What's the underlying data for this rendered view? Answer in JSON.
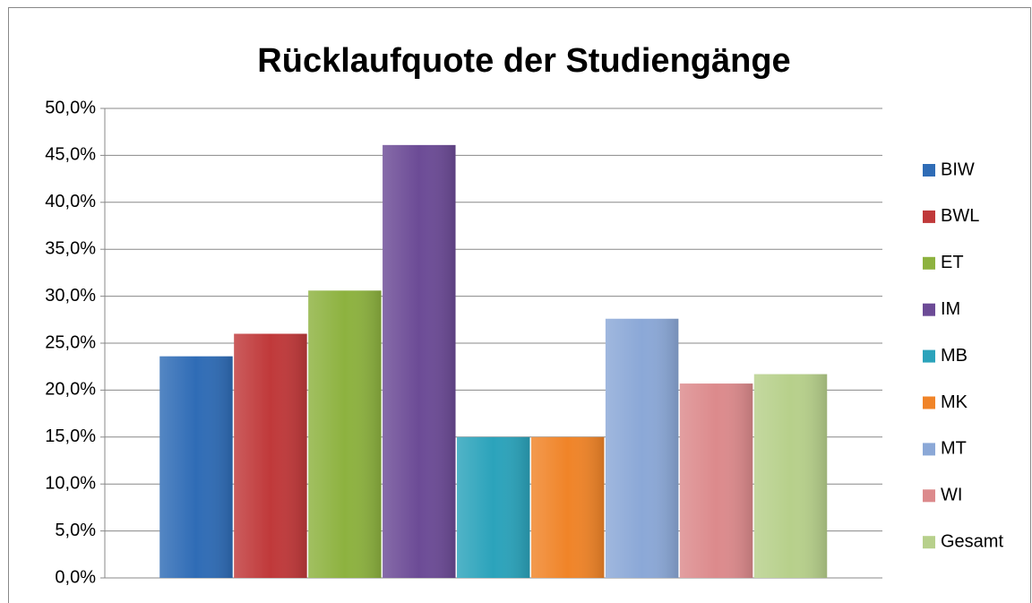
{
  "chart_data": {
    "type": "bar",
    "title": "Rücklaufquote der Studiengänge",
    "categories": [
      null
    ],
    "series": [
      {
        "name": "BIW",
        "color": "#2f6cb6",
        "values": [
          23.6
        ]
      },
      {
        "name": "BWL",
        "color": "#c0393a",
        "values": [
          26.0
        ]
      },
      {
        "name": "ET",
        "color": "#8db23f",
        "values": [
          30.6
        ]
      },
      {
        "name": "IM",
        "color": "#6c4b96",
        "values": [
          46.1
        ]
      },
      {
        "name": "MB",
        "color": "#2ba3bb",
        "values": [
          15.0
        ]
      },
      {
        "name": "MK",
        "color": "#f08428",
        "values": [
          15.0
        ]
      },
      {
        "name": "MT",
        "color": "#8ba8d7",
        "values": [
          27.6
        ]
      },
      {
        "name": "WI",
        "color": "#dc8a8c",
        "values": [
          20.7
        ]
      },
      {
        "name": "Gesamt",
        "color": "#b7d08b",
        "values": [
          21.7
        ]
      }
    ],
    "ylim": [
      0,
      50
    ],
    "yticks": [
      {
        "value": 0,
        "label": "0,0%"
      },
      {
        "value": 5,
        "label": "5,0%"
      },
      {
        "value": 10,
        "label": "10,0%"
      },
      {
        "value": 15,
        "label": "15,0%"
      },
      {
        "value": 20,
        "label": "20,0%"
      },
      {
        "value": 25,
        "label": "25,0%"
      },
      {
        "value": 30,
        "label": "30,0%"
      },
      {
        "value": 35,
        "label": "35,0%"
      },
      {
        "value": 40,
        "label": "40,0%"
      },
      {
        "value": 45,
        "label": "45,0%"
      },
      {
        "value": 50,
        "label": "50,0%"
      }
    ],
    "grid": true,
    "legend": "right"
  }
}
